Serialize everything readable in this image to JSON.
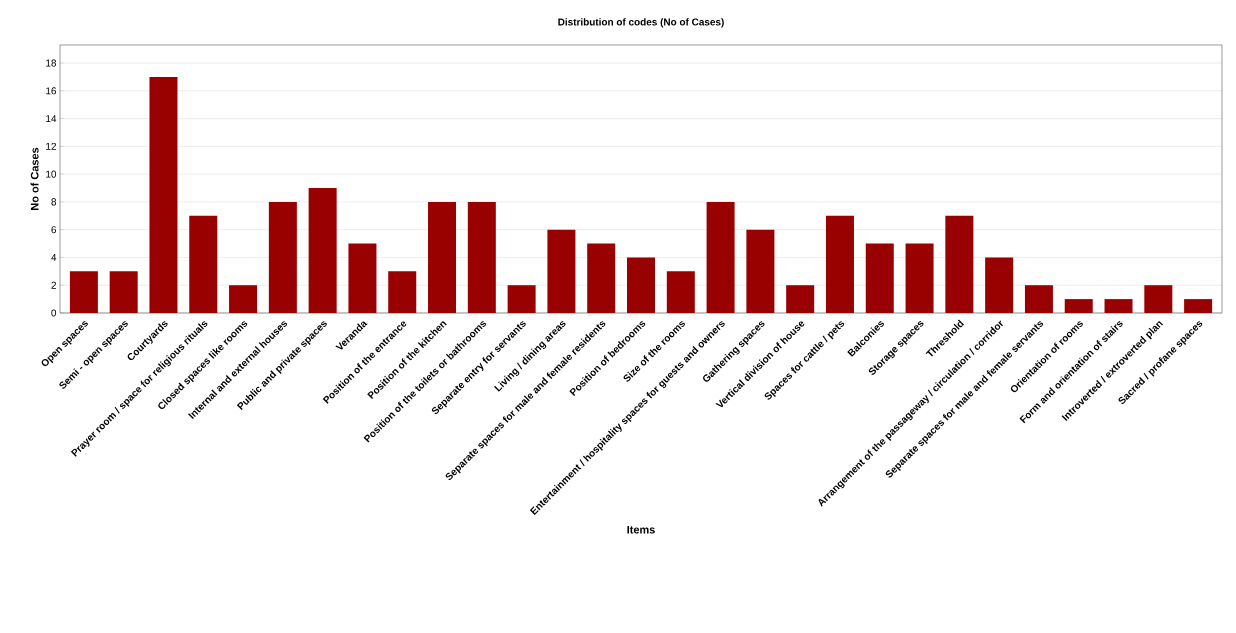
{
  "chart_data": {
    "type": "bar",
    "title": "Distribution of codes (No of Cases)",
    "xlabel": "Items",
    "ylabel": "No of Cases",
    "categories": [
      "Open spaces",
      "Semi - open spaces",
      "Courtyards",
      "Prayer room / space for religious rituals",
      "Closed spaces like rooms",
      "Internal and external houses",
      "Public and private spaces",
      "Veranda",
      "Position of the entrance",
      "Position of the kitchen",
      "Position of the toilets or bathrooms",
      "Separate entry for servants",
      "Living / dining areas",
      "Separate spaces for male and female residents",
      "Position of bedrooms",
      "Size of the rooms",
      "Entertainment / hospitality spaces for guests and owners",
      "Gathering spaces",
      "Vertical division of house",
      "Spaces for cattle / pets",
      "Balconies",
      "Storage spaces",
      "Threshold",
      "Arrangement of the passageway / circulation / corridor",
      "Separate spaces for male and female servants",
      "Orientation of rooms",
      "Form and orientation of stairs",
      "Introverted / extroverted plan",
      "Sacred / profane spaces"
    ],
    "values": [
      3,
      3,
      17,
      7,
      2,
      8,
      9,
      5,
      3,
      8,
      8,
      2,
      6,
      5,
      4,
      3,
      8,
      6,
      2,
      7,
      5,
      5,
      7,
      4,
      2,
      1,
      1,
      2,
      1
    ],
    "color": "#990000",
    "ylim": [
      0,
      19.3
    ],
    "yticks": [
      0,
      2,
      4,
      6,
      8,
      10,
      12,
      14,
      16,
      18
    ],
    "grid": "y"
  }
}
